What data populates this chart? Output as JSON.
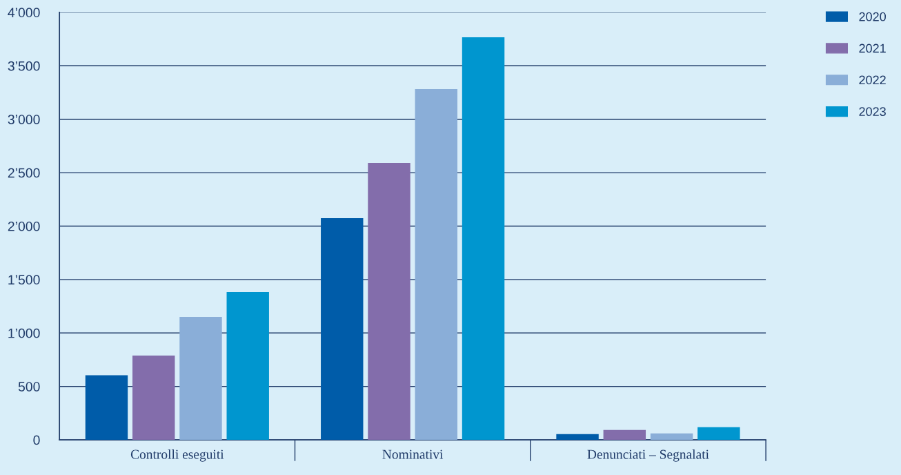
{
  "chart_data": {
    "type": "bar",
    "categories": [
      "Controlli eseguiti",
      "Nominativi",
      "Denunciati – Segnalati"
    ],
    "series": [
      {
        "name": "2020",
        "color": "#005ca9",
        "values": [
          605,
          2074,
          54
        ]
      },
      {
        "name": "2021",
        "color": "#836dab",
        "values": [
          788,
          2591,
          92
        ]
      },
      {
        "name": "2022",
        "color": "#8aaed8",
        "values": [
          1150,
          3282,
          60
        ]
      },
      {
        "name": "2023",
        "color": "#0096cf",
        "values": [
          1383,
          3766,
          118
        ]
      }
    ],
    "ylim": [
      0,
      4000
    ],
    "yticks": [
      {
        "value": 0,
        "label": "0"
      },
      {
        "value": 500,
        "label": "500"
      },
      {
        "value": 1000,
        "label": "1’000"
      },
      {
        "value": 1500,
        "label": "1’500"
      },
      {
        "value": 2000,
        "label": "2’000"
      },
      {
        "value": 2500,
        "label": "2’500"
      },
      {
        "value": 3000,
        "label": "3’000"
      },
      {
        "value": 3500,
        "label": "3’500"
      },
      {
        "value": 4000,
        "label": "4’000"
      }
    ],
    "grid": "y",
    "legend": "top right"
  }
}
